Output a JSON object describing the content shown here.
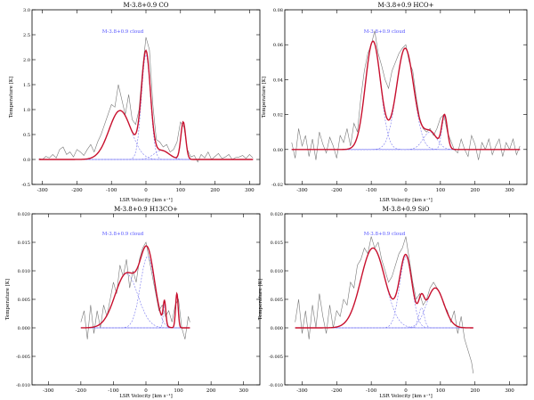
{
  "chart_data": [
    {
      "type": "line",
      "title": "M-3.8+0.9 CO",
      "annotation": "M-3.8+0.9 cloud",
      "xlabel": "LSR Velocity [km s⁻¹]",
      "ylabel": "Temperature [K]",
      "xlim": [
        -330,
        330
      ],
      "ylim": [
        -0.5,
        3.0
      ],
      "xticks": [
        -300,
        -200,
        -100,
        0,
        100,
        200,
        300
      ],
      "yticks": [
        -0.5,
        0.0,
        0.5,
        1.0,
        1.5,
        2.0,
        2.5,
        3.0
      ],
      "ytick_labels": [
        "-0.5",
        "0.0",
        "0.5",
        "1.0",
        "1.5",
        "2.0",
        "2.5",
        "3.0"
      ],
      "fit_range": [
        -310,
        310
      ],
      "gaussians": [
        {
          "amp": 0.98,
          "center": -75,
          "sigma": 32
        },
        {
          "amp": 2.1,
          "center": 0,
          "sigma": 13
        },
        {
          "amp": 0.18,
          "center": 45,
          "sigma": 22
        },
        {
          "amp": 0.75,
          "center": 108,
          "sigma": 7
        }
      ],
      "observed": [
        [
          -310,
          0.02
        ],
        [
          -300,
          0.0
        ],
        [
          -290,
          0.06
        ],
        [
          -280,
          0.03
        ],
        [
          -270,
          0.1
        ],
        [
          -260,
          0.03
        ],
        [
          -250,
          0.2
        ],
        [
          -240,
          0.25
        ],
        [
          -230,
          0.1
        ],
        [
          -220,
          0.15
        ],
        [
          -210,
          0.05
        ],
        [
          -200,
          0.2
        ],
        [
          -190,
          0.15
        ],
        [
          -180,
          0.08
        ],
        [
          -170,
          0.2
        ],
        [
          -160,
          0.3
        ],
        [
          -150,
          0.15
        ],
        [
          -140,
          0.35
        ],
        [
          -130,
          0.5
        ],
        [
          -120,
          0.7
        ],
        [
          -110,
          0.9
        ],
        [
          -100,
          1.1
        ],
        [
          -90,
          1.05
        ],
        [
          -80,
          1.5
        ],
        [
          -70,
          1.2
        ],
        [
          -60,
          0.9
        ],
        [
          -50,
          1.3
        ],
        [
          -40,
          0.8
        ],
        [
          -30,
          0.7
        ],
        [
          -20,
          1.0
        ],
        [
          -10,
          1.8
        ],
        [
          0,
          2.45
        ],
        [
          10,
          2.2
        ],
        [
          20,
          1.1
        ],
        [
          30,
          0.4
        ],
        [
          40,
          0.35
        ],
        [
          50,
          0.25
        ],
        [
          60,
          0.3
        ],
        [
          70,
          0.15
        ],
        [
          80,
          0.2
        ],
        [
          90,
          0.35
        ],
        [
          100,
          0.75
        ],
        [
          110,
          0.65
        ],
        [
          120,
          0.2
        ],
        [
          130,
          0.05
        ],
        [
          140,
          0.08
        ],
        [
          150,
          -0.05
        ],
        [
          160,
          0.1
        ],
        [
          170,
          0.03
        ],
        [
          180,
          0.15
        ],
        [
          190,
          0.0
        ],
        [
          200,
          0.06
        ],
        [
          210,
          0.12
        ],
        [
          220,
          0.02
        ],
        [
          230,
          0.05
        ],
        [
          240,
          0.1
        ],
        [
          250,
          0.0
        ],
        [
          260,
          0.04
        ],
        [
          270,
          0.05
        ],
        [
          280,
          0.08
        ],
        [
          290,
          0.02
        ],
        [
          300,
          0.1
        ],
        [
          310,
          0.03
        ]
      ]
    },
    {
      "type": "line",
      "title": "M-3.8+0.9 HCO+",
      "annotation": "M-3.8+0.9 cloud",
      "xlabel": "LSR Velocity [km s⁻¹]",
      "ylabel": "Temperature [K]",
      "xlim": [
        -350,
        350
      ],
      "ylim": [
        -0.02,
        0.08
      ],
      "xticks": [
        -300,
        -200,
        -100,
        0,
        100,
        200,
        300
      ],
      "yticks": [
        -0.02,
        0.0,
        0.02,
        0.04,
        0.06,
        0.08
      ],
      "ytick_labels": [
        "-0.02",
        "0.00",
        "0.02",
        "0.04",
        "0.06",
        "0.08"
      ],
      "fit_range": [
        -330,
        330
      ],
      "gaussians": [
        {
          "amp": 0.062,
          "center": -95,
          "sigma": 22
        },
        {
          "amp": 0.058,
          "center": -2,
          "sigma": 25
        },
        {
          "amp": 0.01,
          "center": 70,
          "sigma": 20
        },
        {
          "amp": 0.019,
          "center": 112,
          "sigma": 8
        }
      ],
      "observed": [
        [
          -330,
          0.004
        ],
        [
          -320,
          -0.005
        ],
        [
          -310,
          0.012
        ],
        [
          -300,
          0.002
        ],
        [
          -290,
          0.008
        ],
        [
          -280,
          -0.004
        ],
        [
          -270,
          0.006
        ],
        [
          -260,
          -0.006
        ],
        [
          -250,
          0.01
        ],
        [
          -240,
          0.003
        ],
        [
          -230,
          -0.002
        ],
        [
          -220,
          0.007
        ],
        [
          -210,
          0.002
        ],
        [
          -200,
          -0.005
        ],
        [
          -190,
          0.008
        ],
        [
          -180,
          0.004
        ],
        [
          -170,
          0.012
        ],
        [
          -160,
          0.002
        ],
        [
          -150,
          0.015
        ],
        [
          -140,
          0.01
        ],
        [
          -130,
          0.03
        ],
        [
          -120,
          0.045
        ],
        [
          -110,
          0.055
        ],
        [
          -100,
          0.06
        ],
        [
          -90,
          0.068
        ],
        [
          -80,
          0.055
        ],
        [
          -70,
          0.048
        ],
        [
          -60,
          0.04
        ],
        [
          -50,
          0.035
        ],
        [
          -40,
          0.045
        ],
        [
          -30,
          0.05
        ],
        [
          -20,
          0.055
        ],
        [
          -10,
          0.058
        ],
        [
          0,
          0.06
        ],
        [
          10,
          0.05
        ],
        [
          20,
          0.045
        ],
        [
          30,
          0.03
        ],
        [
          40,
          0.018
        ],
        [
          50,
          0.012
        ],
        [
          60,
          0.01
        ],
        [
          70,
          0.012
        ],
        [
          80,
          0.008
        ],
        [
          90,
          0.012
        ],
        [
          100,
          0.018
        ],
        [
          110,
          0.02
        ],
        [
          120,
          0.01
        ],
        [
          130,
          0.005
        ],
        [
          140,
          0.0
        ],
        [
          150,
          -0.002
        ],
        [
          160,
          0.006
        ],
        [
          170,
          0.0
        ],
        [
          180,
          -0.004
        ],
        [
          190,
          0.008
        ],
        [
          200,
          0.003
        ],
        [
          210,
          -0.006
        ],
        [
          220,
          0.004
        ],
        [
          230,
          0.0
        ],
        [
          240,
          0.006
        ],
        [
          250,
          -0.003
        ],
        [
          260,
          0.002
        ],
        [
          270,
          0.006
        ],
        [
          280,
          -0.004
        ],
        [
          290,
          0.004
        ],
        [
          300,
          0.0
        ],
        [
          310,
          0.006
        ],
        [
          320,
          -0.003
        ],
        [
          330,
          0.002
        ]
      ]
    },
    {
      "type": "line",
      "title": "M-3.8+0.9 H13CO+",
      "annotation": "M-3.8+0.9 cloud",
      "xlabel": "LSR Velocity [km s⁻¹]",
      "ylabel": "Temperature [K]",
      "xlim": [
        -350,
        350
      ],
      "ylim": [
        -0.01,
        0.02
      ],
      "xticks": [
        -300,
        -200,
        -100,
        0,
        100,
        200,
        300
      ],
      "yticks": [
        -0.01,
        -0.005,
        0.0,
        0.005,
        0.01,
        0.015,
        0.02
      ],
      "ytick_labels": [
        "-0.010",
        "-0.005",
        "0.000",
        "0.005",
        "0.010",
        "0.015",
        "0.020"
      ],
      "fit_range": [
        -200,
        135
      ],
      "gaussians": [
        {
          "amp": 0.0095,
          "center": -60,
          "sigma": 35
        },
        {
          "amp": 0.0125,
          "center": 5,
          "sigma": 22
        },
        {
          "amp": 0.004,
          "center": 57,
          "sigma": 4
        },
        {
          "amp": 0.006,
          "center": 95,
          "sigma": 4
        }
      ],
      "observed": [
        [
          -200,
          0.001
        ],
        [
          -190,
          0.003
        ],
        [
          -180,
          -0.002
        ],
        [
          -170,
          0.004
        ],
        [
          -160,
          -0.001
        ],
        [
          -150,
          0.003
        ],
        [
          -140,
          0.0
        ],
        [
          -130,
          0.004
        ],
        [
          -120,
          0.002
        ],
        [
          -110,
          0.005
        ],
        [
          -100,
          0.008
        ],
        [
          -90,
          0.006
        ],
        [
          -80,
          0.011
        ],
        [
          -70,
          0.009
        ],
        [
          -60,
          0.012
        ],
        [
          -50,
          0.007
        ],
        [
          -40,
          0.01
        ],
        [
          -30,
          0.008
        ],
        [
          -20,
          0.012
        ],
        [
          -10,
          0.014
        ],
        [
          0,
          0.015
        ],
        [
          10,
          0.012
        ],
        [
          20,
          0.009
        ],
        [
          30,
          0.006
        ],
        [
          40,
          0.003
        ],
        [
          50,
          0.004
        ],
        [
          60,
          0.002
        ],
        [
          70,
          0.003
        ],
        [
          80,
          0.001
        ],
        [
          90,
          0.004
        ],
        [
          100,
          0.005
        ],
        [
          110,
          0.0
        ],
        [
          120,
          -0.002
        ],
        [
          130,
          0.002
        ],
        [
          135,
          0.001
        ]
      ]
    },
    {
      "type": "line",
      "title": "M-3.8+0.9 SiO",
      "annotation": "M-3.8+0.9 cloud",
      "xlabel": "LSR Velocity [km s⁻¹]",
      "ylabel": "Temperature [K]",
      "xlim": [
        -350,
        350
      ],
      "ylim": [
        -0.01,
        0.02
      ],
      "xticks": [
        -300,
        -200,
        -100,
        0,
        100,
        200,
        300
      ],
      "yticks": [
        -0.01,
        -0.005,
        0.0,
        0.005,
        0.01,
        0.015,
        0.02
      ],
      "ytick_labels": [
        "-0.010",
        "-0.005",
        "0.000",
        "0.005",
        "0.010",
        "0.015",
        "0.020"
      ],
      "fit_range": [
        -320,
        195
      ],
      "gaussians": [
        {
          "amp": 0.014,
          "center": -95,
          "sigma": 35
        },
        {
          "amp": 0.0125,
          "center": 0,
          "sigma": 18
        },
        {
          "amp": 0.0035,
          "center": 45,
          "sigma": 8
        },
        {
          "amp": 0.007,
          "center": 85,
          "sigma": 25
        }
      ],
      "observed": [
        [
          -320,
          0.001
        ],
        [
          -310,
          0.005
        ],
        [
          -300,
          -0.001
        ],
        [
          -290,
          0.003
        ],
        [
          -280,
          -0.002
        ],
        [
          -270,
          0.004
        ],
        [
          -260,
          0.0
        ],
        [
          -250,
          0.006
        ],
        [
          -240,
          0.002
        ],
        [
          -230,
          -0.001
        ],
        [
          -220,
          0.004
        ],
        [
          -210,
          0.0
        ],
        [
          -200,
          0.003
        ],
        [
          -190,
          0.002
        ],
        [
          -180,
          0.005
        ],
        [
          -170,
          0.004
        ],
        [
          -160,
          0.008
        ],
        [
          -150,
          0.007
        ],
        [
          -140,
          0.011
        ],
        [
          -130,
          0.012
        ],
        [
          -120,
          0.014
        ],
        [
          -110,
          0.013
        ],
        [
          -100,
          0.016
        ],
        [
          -90,
          0.014
        ],
        [
          -80,
          0.015
        ],
        [
          -70,
          0.012
        ],
        [
          -60,
          0.01
        ],
        [
          -50,
          0.008
        ],
        [
          -40,
          0.009
        ],
        [
          -30,
          0.011
        ],
        [
          -20,
          0.013
        ],
        [
          -10,
          0.014
        ],
        [
          0,
          0.016
        ],
        [
          10,
          0.012
        ],
        [
          20,
          0.008
        ],
        [
          30,
          0.005
        ],
        [
          40,
          0.006
        ],
        [
          50,
          0.004
        ],
        [
          60,
          0.005
        ],
        [
          70,
          0.007
        ],
        [
          80,
          0.008
        ],
        [
          90,
          0.007
        ],
        [
          100,
          0.006
        ],
        [
          110,
          0.004
        ],
        [
          120,
          0.003
        ],
        [
          130,
          0.001
        ],
        [
          140,
          0.003
        ],
        [
          150,
          -0.001
        ],
        [
          160,
          0.002
        ],
        [
          170,
          -0.002
        ],
        [
          180,
          -0.004
        ],
        [
          190,
          -0.006
        ],
        [
          195,
          -0.008
        ]
      ]
    }
  ]
}
